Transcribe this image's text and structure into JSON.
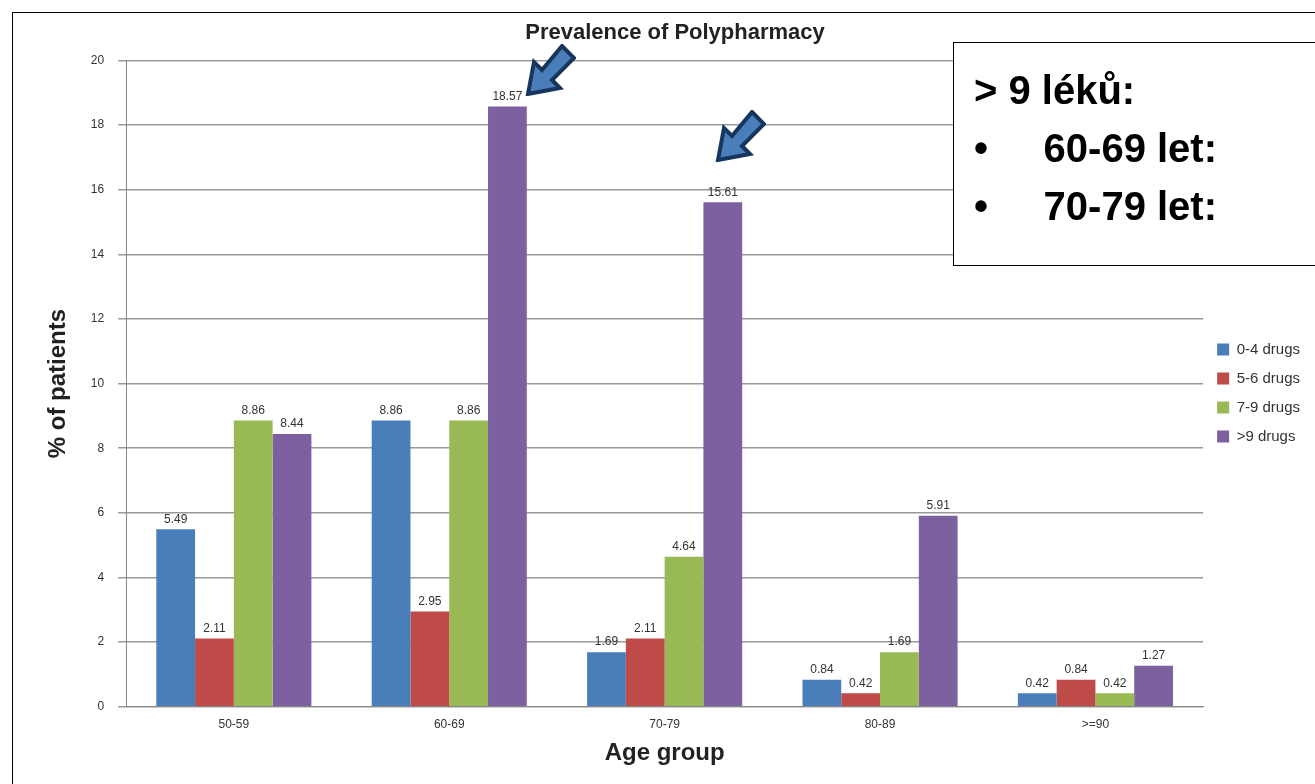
{
  "chart_data": {
    "type": "bar",
    "title": "Prevalence of Polypharmacy",
    "xlabel": "Age group",
    "ylabel": "% of patients",
    "categories": [
      "50-59",
      "60-69",
      "70-79",
      "80-89",
      ">=90"
    ],
    "series": [
      {
        "name": "0-4 drugs",
        "color": "#4a7ebb",
        "values": [
          5.49,
          8.86,
          1.69,
          0.84,
          0.42
        ]
      },
      {
        "name": "5-6 drugs",
        "color": "#be4b48",
        "values": [
          2.11,
          2.95,
          2.11,
          0.42,
          0.84
        ]
      },
      {
        "name": "7-9 drugs",
        "color": "#98b954",
        "values": [
          8.86,
          8.86,
          4.64,
          1.69,
          0.42
        ]
      },
      {
        "name": ">9 drugs",
        "color": "#7d60a0",
        "values": [
          8.44,
          18.57,
          15.61,
          5.91,
          1.27
        ]
      }
    ],
    "ylim": [
      0,
      20
    ],
    "yticks": [
      0,
      2,
      4,
      6,
      8,
      10,
      12,
      14,
      16,
      18,
      20
    ],
    "grid": "y",
    "legend": "right",
    "data_labels": true,
    "annotations": [
      "> 9 léků:",
      "•     60-69 let:",
      "•     70-79 let:"
    ]
  }
}
